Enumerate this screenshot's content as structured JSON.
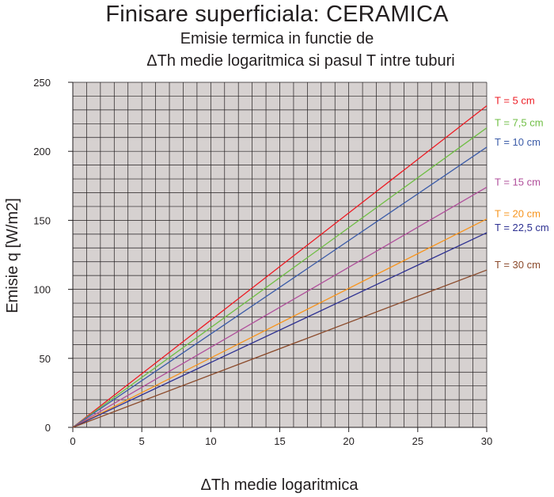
{
  "chart_data": {
    "type": "line",
    "title": "Finisare superficiala: CERAMICA",
    "subtitle_line1": "Emisie termica in functie de",
    "subtitle_line2": "ΔTh medie logaritmica  si pasul T intre tuburi",
    "xlabel": "ΔTh medie logaritmica",
    "ylabel": "Emisie q [W/m2]",
    "xlim": [
      0,
      30
    ],
    "ylim": [
      0,
      250
    ],
    "x_ticks": [
      0,
      5,
      10,
      15,
      20,
      25,
      30
    ],
    "y_ticks": [
      0,
      50,
      100,
      150,
      200,
      250
    ],
    "grid": true,
    "grid_minor_step_x": 1,
    "grid_minor_step_y": 10,
    "plot_background": "#d6d1d0",
    "grid_color": "#231f20",
    "legend_placement": "right, at line ends",
    "series": [
      {
        "name": "T = 5 cm",
        "color": "#ed1c24",
        "x": [
          0,
          30
        ],
        "y": [
          0,
          233
        ]
      },
      {
        "name": "T = 7,5 cm",
        "color": "#6fbe44",
        "x": [
          0,
          30
        ],
        "y": [
          0,
          217
        ]
      },
      {
        "name": "T = 10 cm",
        "color": "#3c5ca8",
        "x": [
          0,
          30
        ],
        "y": [
          0,
          203
        ]
      },
      {
        "name": "T = 15 cm",
        "color": "#b04f9b",
        "x": [
          0,
          30
        ],
        "y": [
          0,
          174
        ]
      },
      {
        "name": "T = 20 cm",
        "color": "#f7941d",
        "x": [
          0,
          30
        ],
        "y": [
          0,
          151
        ]
      },
      {
        "name": "T = 22,5 cm",
        "color": "#2e3192",
        "x": [
          0,
          30
        ],
        "y": [
          0,
          141
        ]
      },
      {
        "name": "T = 30 cm",
        "color": "#8b4a2b",
        "x": [
          0,
          30
        ],
        "y": [
          0,
          114
        ]
      }
    ]
  }
}
